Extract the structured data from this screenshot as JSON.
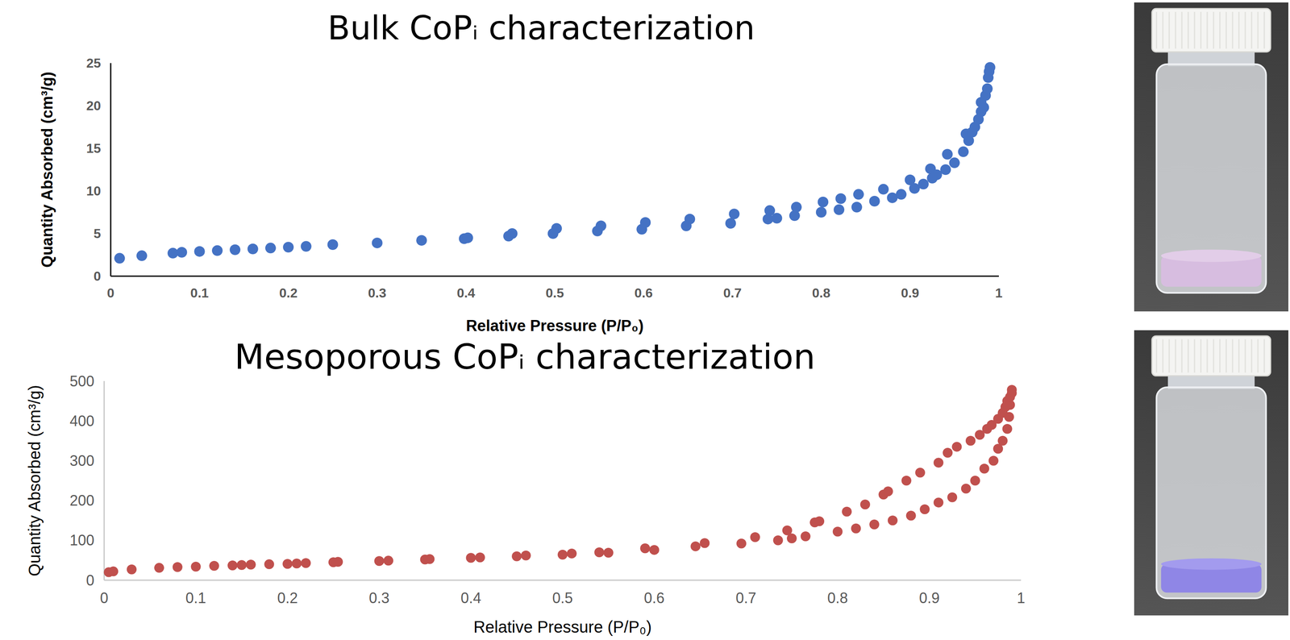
{
  "chart_data": [
    {
      "type": "scatter",
      "title": "Bulk CoPᵢ characterization",
      "x_label": "Relative Pressure (P/P₀)",
      "y_label": "Quantity Absorbed (cm³/g)",
      "color": "#4472c4",
      "marker": "circle",
      "grid": false,
      "x": [
        0.01,
        0.035,
        0.07,
        0.08,
        0.1,
        0.12,
        0.14,
        0.16,
        0.18,
        0.2,
        0.22,
        0.25,
        0.3,
        0.35,
        0.398,
        0.402,
        0.448,
        0.452,
        0.498,
        0.502,
        0.548,
        0.552,
        0.598,
        0.602,
        0.648,
        0.652,
        0.698,
        0.702,
        0.74,
        0.742,
        0.75,
        0.77,
        0.772,
        0.8,
        0.802,
        0.82,
        0.822,
        0.84,
        0.842,
        0.86,
        0.87,
        0.88,
        0.89,
        0.9,
        0.905,
        0.915,
        0.925,
        0.923,
        0.93,
        0.94,
        0.942,
        0.95,
        0.96,
        0.963,
        0.966,
        0.97,
        0.973,
        0.977,
        0.98,
        0.98,
        0.983,
        0.985,
        0.987,
        0.988,
        0.989,
        0.99
      ],
      "values": [
        2.1,
        2.4,
        2.7,
        2.8,
        2.9,
        3.0,
        3.1,
        3.2,
        3.3,
        3.4,
        3.5,
        3.7,
        3.9,
        4.2,
        4.4,
        4.5,
        4.7,
        5.0,
        5.0,
        5.6,
        5.3,
        5.9,
        5.5,
        6.3,
        5.9,
        6.7,
        6.2,
        7.3,
        6.7,
        7.7,
        6.8,
        7.1,
        8.1,
        7.5,
        8.7,
        7.8,
        9.1,
        8.1,
        9.6,
        8.8,
        10.2,
        9.2,
        9.6,
        11.3,
        10.3,
        10.8,
        11.5,
        12.6,
        11.9,
        12.5,
        14.3,
        13.3,
        14.6,
        16.7,
        15.9,
        16.9,
        17.5,
        18.4,
        20.4,
        19.3,
        19.8,
        21.2,
        22.0,
        23.3,
        24.0,
        24.5
      ],
      "xlim": [
        0,
        1
      ],
      "xticks": [
        0,
        0.1,
        0.2,
        0.3,
        0.4,
        0.5,
        0.6,
        0.7,
        0.8,
        0.9,
        1
      ],
      "ylim": [
        0,
        25
      ],
      "yticks": [
        0,
        5,
        10,
        15,
        20,
        25
      ]
    },
    {
      "type": "scatter",
      "title": "Mesoporous CoPᵢ characterization",
      "x_label": "Relative Pressure (P/P₀)",
      "y_label": "Quantity Absorbed (cm³/g)",
      "color": "#c0504d",
      "marker": "circle",
      "grid": false,
      "x": [
        0.005,
        0.01,
        0.03,
        0.06,
        0.08,
        0.1,
        0.12,
        0.14,
        0.15,
        0.16,
        0.18,
        0.2,
        0.21,
        0.22,
        0.25,
        0.255,
        0.3,
        0.31,
        0.35,
        0.355,
        0.4,
        0.41,
        0.45,
        0.46,
        0.5,
        0.51,
        0.54,
        0.55,
        0.59,
        0.6,
        0.645,
        0.655,
        0.695,
        0.71,
        0.735,
        0.745,
        0.75,
        0.765,
        0.775,
        0.78,
        0.8,
        0.81,
        0.82,
        0.83,
        0.84,
        0.85,
        0.855,
        0.86,
        0.875,
        0.88,
        0.89,
        0.895,
        0.91,
        0.91,
        0.92,
        0.925,
        0.93,
        0.94,
        0.945,
        0.95,
        0.955,
        0.96,
        0.963,
        0.97,
        0.968,
        0.975,
        0.975,
        0.98,
        0.98,
        0.985,
        0.983,
        0.987,
        0.985,
        0.988,
        0.988,
        0.99,
        0.99
      ],
      "values": [
        20,
        22,
        27,
        31,
        33,
        34,
        36,
        37,
        38,
        39,
        40,
        41,
        42,
        43,
        45,
        46,
        48,
        49,
        52,
        53,
        56,
        57,
        60,
        62,
        64,
        67,
        70,
        69,
        80,
        76,
        85,
        93,
        92,
        108,
        100,
        125,
        105,
        110,
        145,
        148,
        122,
        172,
        130,
        190,
        140,
        215,
        223,
        150,
        250,
        162,
        270,
        178,
        295,
        195,
        320,
        208,
        335,
        230,
        350,
        250,
        365,
        280,
        380,
        300,
        390,
        330,
        405,
        350,
        420,
        380,
        435,
        410,
        450,
        440,
        460,
        470,
        478
      ],
      "xlim": [
        0,
        1
      ],
      "xticks": [
        0,
        0.1,
        0.2,
        0.3,
        0.4,
        0.5,
        0.6,
        0.7,
        0.8,
        0.9,
        1
      ],
      "ylim": [
        0,
        500
      ],
      "yticks": [
        0,
        100,
        200,
        300,
        400,
        500
      ]
    }
  ]
}
